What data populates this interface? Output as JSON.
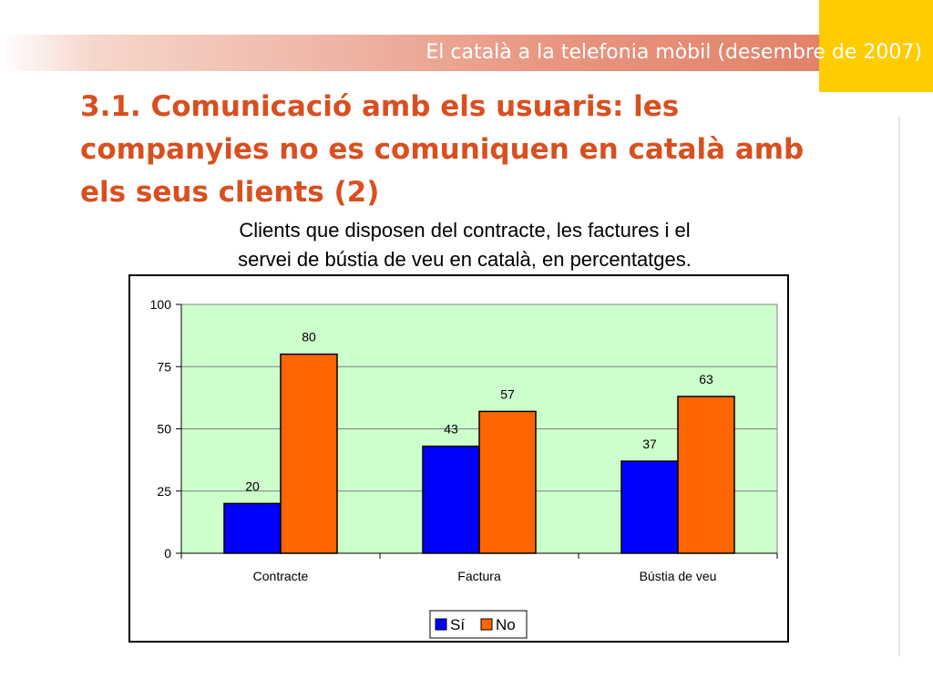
{
  "header": {
    "text": "El català a la telefonia mòbil (desembre de 2007)"
  },
  "slide": {
    "title_lines": [
      "3.1. Comunicació amb els usuaris: les",
      "companyies no es comuniquen en català amb",
      "els seus clients (2)"
    ],
    "subtitle_lines": [
      "Clients que disposen del contracte, les factures i el",
      "servei de bústia de veu en català, en percentatges."
    ]
  },
  "colors": {
    "header_band": "#e07a60",
    "accent_yellow": "#ffcc00",
    "title": "#d94f1f",
    "plot_bg": "#ccffcc",
    "series_si": "#0000ff",
    "series_no": "#ff6600"
  },
  "chart_data": {
    "type": "bar",
    "categories": [
      "Contracte",
      "Factura",
      "Bústia de veu"
    ],
    "series": [
      {
        "name": "Sí",
        "values": [
          20,
          43,
          37
        ]
      },
      {
        "name": "No",
        "values": [
          80,
          57,
          63
        ]
      }
    ],
    "ylim": [
      0,
      100
    ],
    "yticks": [
      0,
      25,
      50,
      75,
      100
    ],
    "grid": true,
    "legend": "bottom-center",
    "data_labels": true
  }
}
